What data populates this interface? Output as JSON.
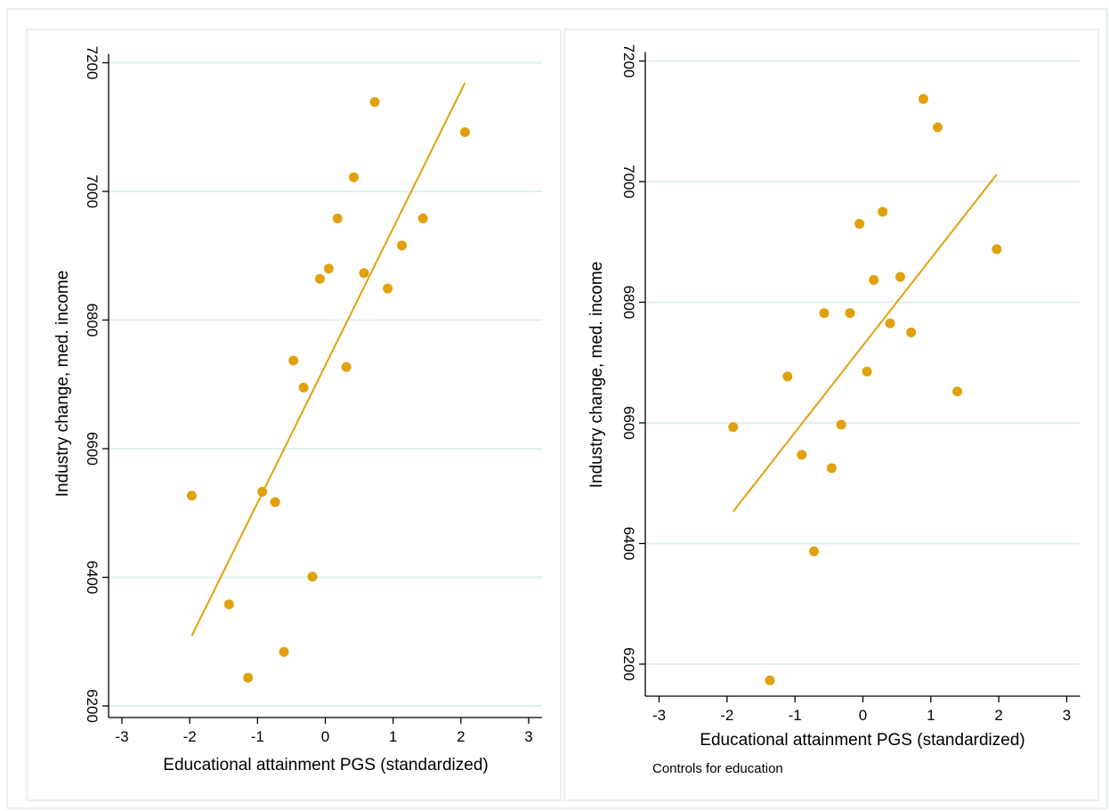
{
  "colors": {
    "marker": "#e0a10c",
    "fit_line": "#e0a10c",
    "grid": "#e2eef1",
    "panel_border": "#e9f0f2"
  },
  "chart_data": [
    {
      "type": "scatter",
      "xlabel": "Educational attainment PGS (standardized)",
      "ylabel": "Industry change, med. income",
      "note": "",
      "xlim": [
        -3,
        3
      ],
      "ylim": [
        6200,
        7200
      ],
      "xticks": [
        -3,
        -2,
        -1,
        0,
        1,
        2,
        3
      ],
      "yticks": [
        6200,
        6400,
        6600,
        6800,
        7000,
        7200
      ],
      "grid": "horizontal",
      "points": [
        {
          "x": -1.97,
          "y": 6527
        },
        {
          "x": -1.42,
          "y": 6358
        },
        {
          "x": -1.14,
          "y": 6244
        },
        {
          "x": -0.93,
          "y": 6533
        },
        {
          "x": -0.74,
          "y": 6517
        },
        {
          "x": -0.61,
          "y": 6284
        },
        {
          "x": -0.47,
          "y": 6737
        },
        {
          "x": -0.32,
          "y": 6695
        },
        {
          "x": -0.19,
          "y": 6401
        },
        {
          "x": -0.08,
          "y": 6864
        },
        {
          "x": 0.05,
          "y": 6880
        },
        {
          "x": 0.18,
          "y": 6958
        },
        {
          "x": 0.31,
          "y": 6727
        },
        {
          "x": 0.42,
          "y": 7022
        },
        {
          "x": 0.57,
          "y": 6873
        },
        {
          "x": 0.73,
          "y": 7139
        },
        {
          "x": 0.92,
          "y": 6849
        },
        {
          "x": 1.13,
          "y": 6916
        },
        {
          "x": 1.44,
          "y": 6958
        },
        {
          "x": 2.06,
          "y": 7092
        }
      ],
      "fit_line": [
        {
          "x": -1.97,
          "y": 6309
        },
        {
          "x": 2.06,
          "y": 7169
        }
      ]
    },
    {
      "type": "scatter",
      "xlabel": "Educational attainment PGS (standardized)",
      "ylabel": "Industry change, med. income",
      "note": "Controls for education",
      "xlim": [
        -3,
        3
      ],
      "ylim": [
        6200,
        7200
      ],
      "xticks": [
        -3,
        -2,
        -1,
        0,
        1,
        2,
        3
      ],
      "yticks": [
        6200,
        6400,
        6600,
        6800,
        7000,
        7200
      ],
      "grid": "horizontal",
      "points": [
        {
          "x": -1.91,
          "y": 6593
        },
        {
          "x": -1.37,
          "y": 6173
        },
        {
          "x": -1.11,
          "y": 6677
        },
        {
          "x": -0.9,
          "y": 6547
        },
        {
          "x": -0.72,
          "y": 6387
        },
        {
          "x": -0.57,
          "y": 6782
        },
        {
          "x": -0.46,
          "y": 6525
        },
        {
          "x": -0.32,
          "y": 6597
        },
        {
          "x": -0.19,
          "y": 6782
        },
        {
          "x": -0.05,
          "y": 6930
        },
        {
          "x": 0.06,
          "y": 6685
        },
        {
          "x": 0.16,
          "y": 6837
        },
        {
          "x": 0.29,
          "y": 6950
        },
        {
          "x": 0.4,
          "y": 6765
        },
        {
          "x": 0.55,
          "y": 6842
        },
        {
          "x": 0.71,
          "y": 6750
        },
        {
          "x": 0.89,
          "y": 7137
        },
        {
          "x": 1.1,
          "y": 7090
        },
        {
          "x": 1.39,
          "y": 6652
        },
        {
          "x": 1.97,
          "y": 6888
        }
      ],
      "fit_line": [
        {
          "x": -1.91,
          "y": 6453
        },
        {
          "x": 1.97,
          "y": 7012
        }
      ]
    }
  ]
}
